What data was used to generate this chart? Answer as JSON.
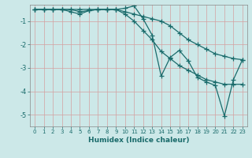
{
  "xlabel": "Humidex (Indice chaleur)",
  "bg_color": "#cce8e8",
  "line_color": "#1a6b6b",
  "grid_color": "#b8d8d8",
  "xlim": [
    -0.5,
    23.5
  ],
  "ylim": [
    -5.5,
    -0.3
  ],
  "yticks": [
    -5,
    -4,
    -3,
    -2,
    -1
  ],
  "xticks": [
    0,
    1,
    2,
    3,
    4,
    5,
    6,
    7,
    8,
    9,
    10,
    11,
    12,
    13,
    14,
    15,
    16,
    17,
    18,
    19,
    20,
    21,
    22,
    23
  ],
  "line1_x": [
    0,
    1,
    2,
    3,
    4,
    5,
    6,
    7,
    8,
    9,
    10,
    11,
    12,
    13,
    14,
    15,
    16,
    17,
    18,
    19,
    20,
    21,
    22,
    23
  ],
  "line1_y": [
    -0.5,
    -0.5,
    -0.5,
    -0.5,
    -0.6,
    -0.7,
    -0.55,
    -0.5,
    -0.5,
    -0.5,
    -0.6,
    -0.7,
    -0.8,
    -0.9,
    -1.0,
    -1.2,
    -1.5,
    -1.8,
    -2.0,
    -2.2,
    -2.4,
    -2.5,
    -2.6,
    -2.65
  ],
  "line2_x": [
    0,
    1,
    2,
    3,
    4,
    5,
    6,
    7,
    8,
    9,
    10,
    11,
    12,
    13,
    14,
    15,
    16,
    17,
    18,
    19,
    20,
    21,
    22,
    23
  ],
  "line2_y": [
    -0.5,
    -0.5,
    -0.5,
    -0.5,
    -0.5,
    -0.5,
    -0.5,
    -0.5,
    -0.5,
    -0.5,
    -0.7,
    -1.0,
    -1.4,
    -1.8,
    -2.3,
    -2.6,
    -2.9,
    -3.1,
    -3.3,
    -3.5,
    -3.6,
    -3.7,
    -3.7,
    -3.7
  ],
  "line3_x": [
    0,
    1,
    2,
    3,
    4,
    5,
    6,
    7,
    8,
    9,
    10,
    11,
    12,
    13,
    14,
    15,
    16,
    17,
    18,
    19,
    20,
    21,
    22,
    23
  ],
  "line3_y": [
    -0.5,
    -0.5,
    -0.5,
    -0.5,
    -0.5,
    -0.6,
    -0.55,
    -0.5,
    -0.5,
    -0.5,
    -0.45,
    -0.35,
    -0.9,
    -1.6,
    -3.35,
    -2.55,
    -2.25,
    -2.7,
    -3.4,
    -3.6,
    -3.75,
    -5.05,
    -3.5,
    -2.65
  ]
}
